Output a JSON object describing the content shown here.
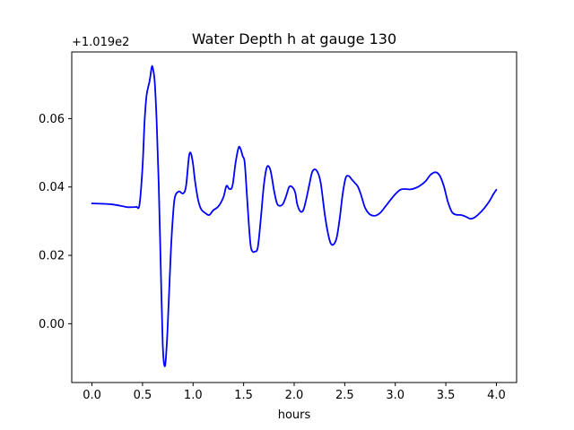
{
  "chart_data": {
    "type": "line",
    "title": "Water Depth h at gauge 130",
    "xlabel": "hours",
    "ylabel": "",
    "y_offset_label": "+1.019e2",
    "y_offset_value": 101.9,
    "xlim": [
      -0.2,
      4.2
    ],
    "ylim": [
      -0.0172,
      0.0795
    ],
    "xticks": [
      0.0,
      0.5,
      1.0,
      1.5,
      2.0,
      2.5,
      3.0,
      3.5,
      4.0
    ],
    "xtick_labels": [
      "0.0",
      "0.5",
      "1.0",
      "1.5",
      "2.0",
      "2.5",
      "3.0",
      "3.5",
      "4.0"
    ],
    "yticks": [
      0.0,
      0.02,
      0.04,
      0.06
    ],
    "ytick_labels": [
      "0.00",
      "0.02",
      "0.04",
      "0.06"
    ],
    "grid": false,
    "line_color": "#0000ff",
    "series": [
      {
        "x": [
          0.0,
          0.1,
          0.2,
          0.3,
          0.35,
          0.4,
          0.44,
          0.47,
          0.5,
          0.52,
          0.54,
          0.57,
          0.59,
          0.6,
          0.62,
          0.64,
          0.66,
          0.68,
          0.7,
          0.72,
          0.74,
          0.76,
          0.78,
          0.8,
          0.82,
          0.86,
          0.9,
          0.93,
          0.96,
          0.98,
          1.0,
          1.02,
          1.05,
          1.08,
          1.12,
          1.16,
          1.2,
          1.25,
          1.3,
          1.33,
          1.36,
          1.39,
          1.42,
          1.45,
          1.47,
          1.49,
          1.51,
          1.53,
          1.55,
          1.57,
          1.59,
          1.61,
          1.64,
          1.67,
          1.7,
          1.73,
          1.76,
          1.78,
          1.8,
          1.83,
          1.86,
          1.89,
          1.92,
          1.95,
          1.98,
          2.01,
          2.03,
          2.06,
          2.09,
          2.12,
          2.15,
          2.18,
          2.22,
          2.26,
          2.3,
          2.33,
          2.36,
          2.39,
          2.42,
          2.45,
          2.48,
          2.51,
          2.54,
          2.57,
          2.6,
          2.63,
          2.66,
          2.7,
          2.74,
          2.78,
          2.82,
          2.86,
          2.9,
          2.95,
          3.0,
          3.05,
          3.1,
          3.15,
          3.2,
          3.25,
          3.3,
          3.35,
          3.4,
          3.44,
          3.48,
          3.52,
          3.56,
          3.6,
          3.65,
          3.7,
          3.74,
          3.78,
          3.83,
          3.88,
          3.93,
          3.97,
          4.0
        ],
        "y": [
          0.0352,
          0.0351,
          0.0349,
          0.0344,
          0.0341,
          0.0341,
          0.0342,
          0.0348,
          0.0458,
          0.059,
          0.0668,
          0.071,
          0.0749,
          0.075,
          0.071,
          0.059,
          0.041,
          0.017,
          -0.006,
          -0.0125,
          -0.006,
          0.007,
          0.021,
          0.031,
          0.037,
          0.0387,
          0.0381,
          0.0402,
          0.049,
          0.0497,
          0.0466,
          0.0416,
          0.0362,
          0.0335,
          0.0324,
          0.0318,
          0.0332,
          0.0343,
          0.037,
          0.0403,
          0.0394,
          0.0404,
          0.047,
          0.0515,
          0.0511,
          0.0491,
          0.0473,
          0.0388,
          0.0298,
          0.0227,
          0.0211,
          0.0211,
          0.0223,
          0.0307,
          0.0405,
          0.0458,
          0.0454,
          0.0427,
          0.0391,
          0.0352,
          0.0345,
          0.0351,
          0.0373,
          0.04,
          0.04,
          0.0384,
          0.035,
          0.0329,
          0.0332,
          0.0365,
          0.0407,
          0.0445,
          0.0449,
          0.0416,
          0.0326,
          0.0271,
          0.0236,
          0.0232,
          0.0251,
          0.0307,
          0.038,
          0.0427,
          0.0432,
          0.0422,
          0.0412,
          0.0401,
          0.0378,
          0.034,
          0.0322,
          0.0316,
          0.0318,
          0.0327,
          0.0342,
          0.0361,
          0.0379,
          0.0392,
          0.0394,
          0.0393,
          0.0397,
          0.0405,
          0.0417,
          0.0436,
          0.0443,
          0.0433,
          0.0403,
          0.0357,
          0.0327,
          0.0319,
          0.0318,
          0.0313,
          0.0307,
          0.031,
          0.0322,
          0.0338,
          0.0358,
          0.0379,
          0.0392
        ]
      }
    ]
  }
}
